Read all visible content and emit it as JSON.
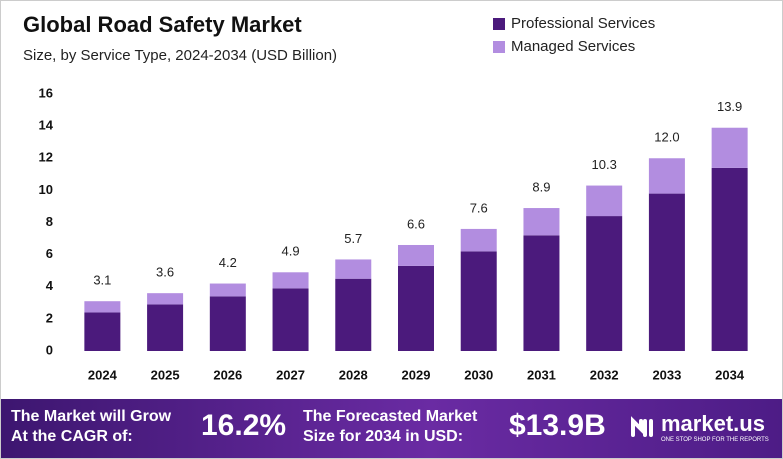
{
  "chart_data": {
    "type": "stacked-bar",
    "title": "Global Road Safety Market",
    "subtitle": "Size, by Service Type, 2024-2034 (USD Billion)",
    "categories": [
      "2024",
      "2025",
      "2026",
      "2027",
      "2028",
      "2029",
      "2030",
      "2031",
      "2032",
      "2033",
      "2034"
    ],
    "series": [
      {
        "name": "Professional Services",
        "color": "#4b1a7c",
        "values": [
          2.4,
          2.9,
          3.4,
          3.9,
          4.5,
          5.3,
          6.2,
          7.2,
          8.4,
          9.8,
          11.4
        ]
      },
      {
        "name": "Managed Services",
        "color": "#b28de0",
        "values": [
          0.7,
          0.7,
          0.8,
          1.0,
          1.2,
          1.3,
          1.4,
          1.7,
          1.9,
          2.2,
          2.5
        ]
      }
    ],
    "total_labels": [
      "3.1",
      "3.6",
      "4.2",
      "4.9",
      "5.7",
      "6.6",
      "7.6",
      "8.9",
      "10.3",
      "12.0",
      "13.9"
    ],
    "ylim": [
      0,
      16
    ],
    "yticks": [
      0,
      2,
      4,
      6,
      8,
      10,
      12,
      14,
      16
    ],
    "grid": false
  },
  "footer": {
    "cagr_text": "The Market will Grow At the CAGR of:",
    "cagr": "16.2%",
    "forecast_text": "The Forecasted Market Size for 2034 in USD:",
    "forecast": "$13.9B",
    "brand": "market.us",
    "tagline": "ONE STOP SHOP FOR THE REPORTS"
  }
}
